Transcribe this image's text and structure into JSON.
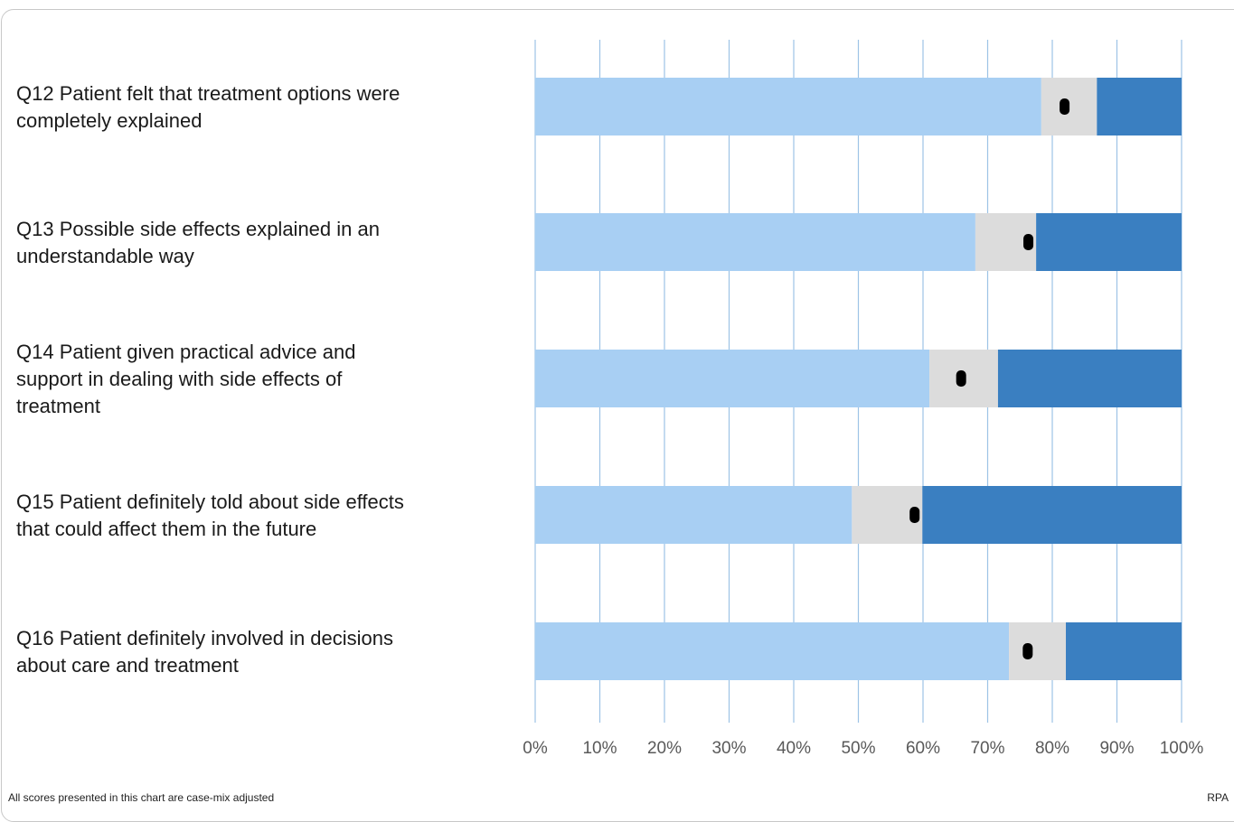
{
  "chart_data": {
    "type": "bar",
    "orientation": "horizontal",
    "stacked": true,
    "categories": [
      [
        "Q12 Patient felt that treatment options were",
        "completely explained"
      ],
      [
        "Q13 Possible side effects explained in an",
        "understandable way"
      ],
      [
        "Q14 Patient given practical advice and",
        "support in dealing with side effects of",
        "treatment"
      ],
      [
        "Q15 Patient definitely told about side effects",
        "that could affect them in the future"
      ],
      [
        "Q16 Patient definitely involved in decisions",
        "about care and treatment"
      ]
    ],
    "series": [
      {
        "color": "#a8cff3",
        "values": [
          78.3,
          68.1,
          61.0,
          49.0,
          73.3
        ]
      },
      {
        "color": "#dcdcdc",
        "values": [
          8.6,
          9.4,
          10.6,
          10.9,
          8.8
        ]
      },
      {
        "color": "#3a7fc1",
        "values": [
          13.1,
          22.5,
          28.4,
          40.1,
          17.9
        ]
      }
    ],
    "markers": [
      81.9,
      76.3,
      65.9,
      58.7,
      76.2
    ],
    "marker_color": "#000000",
    "xlim": [
      0,
      100
    ],
    "xticks": [
      "0%",
      "10%",
      "20%",
      "30%",
      "40%",
      "50%",
      "60%",
      "70%",
      "80%",
      "90%",
      "100%"
    ],
    "grid": true,
    "gridline_color": "#9dc3e6"
  },
  "footnote": "All scores presented in this chart are case-mix adjusted",
  "org_code": "RPA"
}
